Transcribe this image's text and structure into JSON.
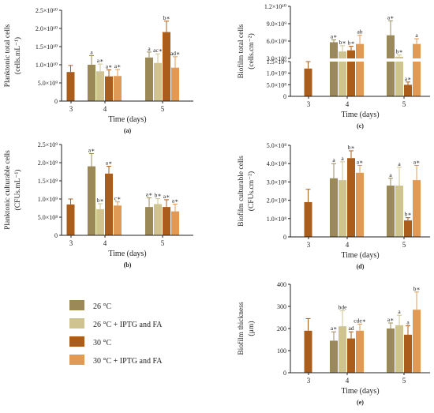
{
  "colors": {
    "c26": "#9b8a58",
    "c26i": "#cfc48f",
    "c30": "#ab5e1c",
    "c30i": "#e09a55"
  },
  "legend": [
    {
      "key": "c26",
      "label": "26 °C"
    },
    {
      "key": "c26i",
      "label": "26 °C + IPTG and FA"
    },
    {
      "key": "c30",
      "label": "30 °C"
    },
    {
      "key": "c30i",
      "label": "30 °C + IPTG and FA"
    }
  ],
  "chart_data": [
    {
      "id": "a",
      "type": "bar",
      "panel_label": "(a)",
      "ylabel_line1": "Planktonic total cells",
      "ylabel_line2": "(cells.mL⁻¹)",
      "xlabel": "Time (days)",
      "ylim": [
        0,
        25000000000
      ],
      "yticks": [
        {
          "v": 0,
          "label": "0"
        },
        {
          "v": 5000000000,
          "label": "5.0×10⁹"
        },
        {
          "v": 10000000000,
          "label": "1.0×10¹⁰"
        },
        {
          "v": 15000000000,
          "label": "1.5×10¹⁰"
        },
        {
          "v": 20000000000,
          "label": "2.0×10¹⁰"
        },
        {
          "v": 25000000000,
          "label": "2.5×10¹⁰"
        }
      ],
      "groups": [
        {
          "label": "3",
          "bars": [
            {
              "key": "c30",
              "value": 8000000000,
              "err": 1800000000,
              "sig": ""
            }
          ]
        },
        {
          "label": "4",
          "bars": [
            {
              "key": "c26",
              "value": 10000000000,
              "err": 2500000000,
              "sig": "a"
            },
            {
              "key": "c26i",
              "value": 8200000000,
              "err": 2000000000,
              "sig": "a∗"
            },
            {
              "key": "c30",
              "value": 6800000000,
              "err": 1800000000,
              "sig": "a∗"
            },
            {
              "key": "c30i",
              "value": 6900000000,
              "err": 1800000000,
              "sig": "a∗"
            }
          ]
        },
        {
          "label": "5",
          "bars": [
            {
              "key": "c26",
              "value": 12000000000,
              "err": 1500000000,
              "sig": "a"
            },
            {
              "key": "c26i",
              "value": 10500000000,
              "err": 2500000000,
              "sig": "ac∗"
            },
            {
              "key": "c30",
              "value": 19000000000,
              "err": 3000000000,
              "sig": "b∗"
            },
            {
              "key": "c30i",
              "value": 9200000000,
              "err": 3000000000,
              "sig": "ad∗"
            }
          ]
        }
      ]
    },
    {
      "id": "c",
      "type": "bar",
      "panel_label": "(c)",
      "ylabel_line1": "Biofilm total cells",
      "ylabel_line2": "(cells.cm⁻²)",
      "xlabel": "Time (days)",
      "broken_axis": true,
      "lower_ylim": [
        0,
        1500000000
      ],
      "upper_ylim": [
        3000000000,
        12000000000
      ],
      "lower_yticks": [
        {
          "v": 0,
          "label": "0"
        },
        {
          "v": 500000000,
          "label": "5.0×10⁸"
        },
        {
          "v": 1000000000,
          "label": "1.0×10⁹"
        },
        {
          "v": 1500000000,
          "label": "1.5×10⁹"
        }
      ],
      "upper_yticks": [
        {
          "v": 3000000000,
          "label": "3.0×10⁹"
        },
        {
          "v": 6000000000,
          "label": "6.0×10⁹"
        },
        {
          "v": 9000000000,
          "label": "9.0×10⁹"
        },
        {
          "v": 12000000000,
          "label": "1.2×10¹⁰"
        }
      ],
      "groups": [
        {
          "label": "3",
          "bars": [
            {
              "key": "c30",
              "value": 1200000000,
              "err": 300000000,
              "sig": ""
            }
          ]
        },
        {
          "label": "4",
          "bars": [
            {
              "key": "c26",
              "value": 5800000000,
              "err": 400000000,
              "sig": "a∗"
            },
            {
              "key": "c26i",
              "value": 4200000000,
              "err": 1000000000,
              "sig": "b∗"
            },
            {
              "key": "c30",
              "value": 4400000000,
              "err": 700000000,
              "sig": "b∗"
            },
            {
              "key": "c30i",
              "value": 5500000000,
              "err": 1500000000,
              "sig": "ab"
            }
          ]
        },
        {
          "label": "5",
          "bars": [
            {
              "key": "c26",
              "value": 7000000000,
              "err": 2500000000,
              "sig": "a∗"
            },
            {
              "key": "c26i",
              "value": 3300000000,
              "err": 300000000,
              "sig": "b∗"
            },
            {
              "key": "c30",
              "value": 500000000,
              "err": 120000000,
              "sig": "a∗"
            },
            {
              "key": "c30i",
              "value": 5500000000,
              "err": 900000000,
              "sig": "a"
            }
          ]
        }
      ]
    },
    {
      "id": "b",
      "type": "bar",
      "panel_label": "(b)",
      "ylabel_line1": "Planktonic culturable cells",
      "ylabel_line2": "(CFUs.mL⁻¹)",
      "xlabel": "Time (days)",
      "ylim": [
        0,
        2500000000
      ],
      "yticks": [
        {
          "v": 0,
          "label": "0"
        },
        {
          "v": 500000000,
          "label": "5.0×10⁸"
        },
        {
          "v": 1000000000,
          "label": "1.0×10⁹"
        },
        {
          "v": 1500000000,
          "label": "1.5×10⁹"
        },
        {
          "v": 2000000000,
          "label": "2.0×10⁹"
        },
        {
          "v": 2500000000,
          "label": "2.5×10⁹"
        }
      ],
      "groups": [
        {
          "label": "3",
          "bars": [
            {
              "key": "c30",
              "value": 850000000,
              "err": 150000000,
              "sig": ""
            }
          ]
        },
        {
          "label": "4",
          "bars": [
            {
              "key": "c26",
              "value": 1900000000,
              "err": 350000000,
              "sig": "a∗"
            },
            {
              "key": "c26i",
              "value": 720000000,
              "err": 150000000,
              "sig": "b∗"
            },
            {
              "key": "c30",
              "value": 1700000000,
              "err": 200000000,
              "sig": "a∗"
            },
            {
              "key": "c30i",
              "value": 820000000,
              "err": 100000000,
              "sig": "c∗"
            }
          ]
        },
        {
          "label": "5",
          "bars": [
            {
              "key": "c26",
              "value": 780000000,
              "err": 250000000,
              "sig": "a∗"
            },
            {
              "key": "c26i",
              "value": 860000000,
              "err": 150000000,
              "sig": "b∗"
            },
            {
              "key": "c30",
              "value": 780000000,
              "err": 200000000,
              "sig": "a∗"
            },
            {
              "key": "c30i",
              "value": 660000000,
              "err": 200000000,
              "sig": "a∗"
            }
          ]
        }
      ]
    },
    {
      "id": "d",
      "type": "bar",
      "panel_label": "(d)",
      "ylabel_line1": "Biofilm culturable cells",
      "ylabel_line2": "(CFUs.cm⁻²)",
      "xlabel": "Time (days)",
      "ylim": [
        0,
        500000000
      ],
      "yticks": [
        {
          "v": 0,
          "label": "0"
        },
        {
          "v": 100000000,
          "label": "1.0×10⁸"
        },
        {
          "v": 200000000,
          "label": "2.0×10⁸"
        },
        {
          "v": 300000000,
          "label": "3.0×10⁸"
        },
        {
          "v": 400000000,
          "label": "4.0×10⁸"
        },
        {
          "v": 500000000,
          "label": "5.0×10⁸"
        }
      ],
      "groups": [
        {
          "label": "3",
          "bars": [
            {
              "key": "c30",
              "value": 190000000,
              "err": 70000000,
              "sig": ""
            }
          ]
        },
        {
          "label": "4",
          "bars": [
            {
              "key": "c26",
              "value": 320000000,
              "err": 80000000,
              "sig": "a"
            },
            {
              "key": "c26i",
              "value": 310000000,
              "err": 100000000,
              "sig": "a"
            },
            {
              "key": "c30",
              "value": 430000000,
              "err": 40000000,
              "sig": "b∗"
            },
            {
              "key": "c30i",
              "value": 350000000,
              "err": 40000000,
              "sig": "a∗"
            }
          ]
        },
        {
          "label": "5",
          "bars": [
            {
              "key": "c26",
              "value": 280000000,
              "err": 40000000,
              "sig": "a"
            },
            {
              "key": "c26i",
              "value": 280000000,
              "err": 100000000,
              "sig": "a"
            },
            {
              "key": "c30",
              "value": 90000000,
              "err": 15000000,
              "sig": "b∗"
            },
            {
              "key": "c30i",
              "value": 310000000,
              "err": 80000000,
              "sig": "a∗"
            }
          ]
        }
      ]
    },
    {
      "id": "e",
      "type": "bar",
      "panel_label": "(e)",
      "ylabel_line1": "Biofilm thickness",
      "ylabel_line2": "(µm)",
      "xlabel": "Time (days)",
      "ylim": [
        0,
        400
      ],
      "yticks": [
        {
          "v": 0,
          "label": "0"
        },
        {
          "v": 100,
          "label": "100"
        },
        {
          "v": 200,
          "label": "200"
        },
        {
          "v": 300,
          "label": "300"
        },
        {
          "v": 400,
          "label": "400"
        }
      ],
      "groups": [
        {
          "label": "3",
          "bars": [
            {
              "key": "c30",
              "value": 190,
              "err": 55,
              "sig": ""
            }
          ]
        },
        {
          "label": "4",
          "bars": [
            {
              "key": "c26",
              "value": 145,
              "err": 40,
              "sig": "a∗"
            },
            {
              "key": "c26i",
              "value": 210,
              "err": 70,
              "sig": "bde"
            },
            {
              "key": "c30",
              "value": 155,
              "err": 30,
              "sig": "ad"
            },
            {
              "key": "c30i",
              "value": 190,
              "err": 30,
              "sig": "cde∗"
            }
          ]
        },
        {
          "label": "5",
          "bars": [
            {
              "key": "c26",
              "value": 200,
              "err": 25,
              "sig": "a∗"
            },
            {
              "key": "c26i",
              "value": 215,
              "err": 45,
              "sig": "a"
            },
            {
              "key": "c30",
              "value": 172,
              "err": 40,
              "sig": "a"
            },
            {
              "key": "c30i",
              "value": 285,
              "err": 80,
              "sig": "b∗"
            }
          ]
        }
      ]
    }
  ]
}
